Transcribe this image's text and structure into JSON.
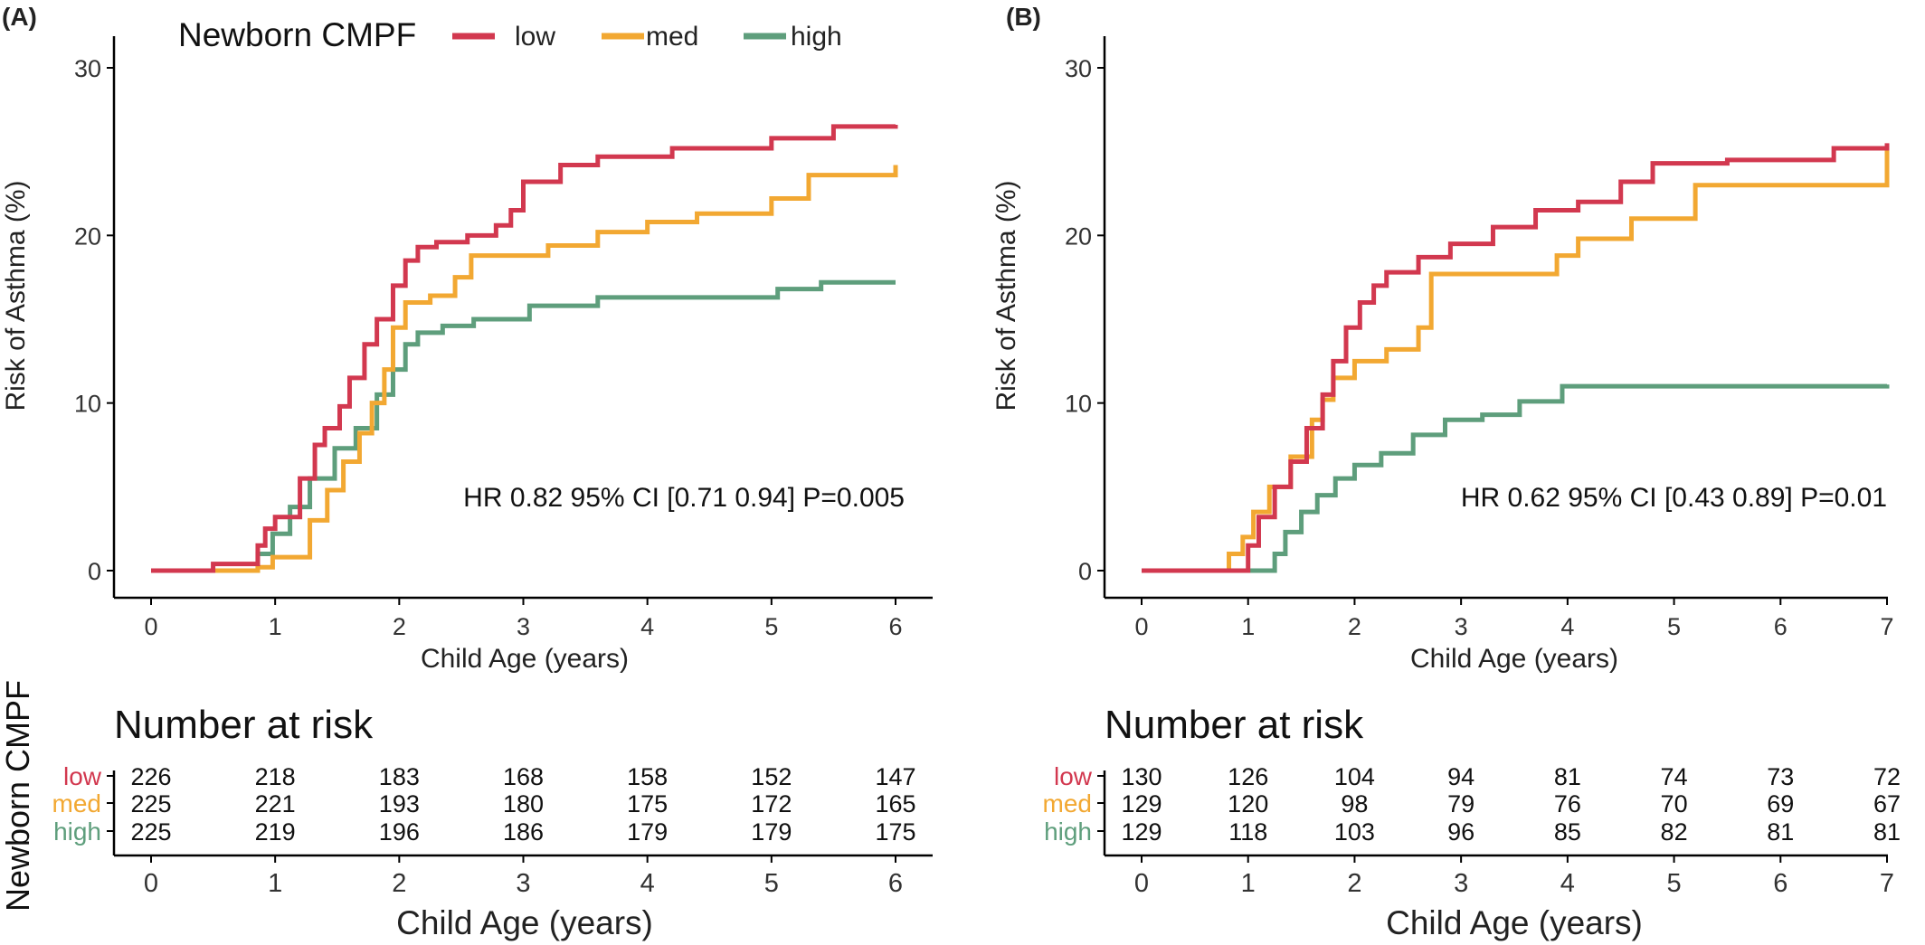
{
  "colors": {
    "low": "#d2384f",
    "med": "#f2a832",
    "high": "#5e9e7c",
    "axis": "#000000",
    "text": "#333333"
  },
  "legend": {
    "title": "Newborn CMPF",
    "items": [
      "low",
      "med",
      "high"
    ]
  },
  "risk_table": {
    "title": "Number at risk",
    "row_axis_label": "Newborn CMPF"
  },
  "chart_data": [
    {
      "type": "line",
      "panel": "(A)",
      "title": "",
      "xlabel": "Child Age (years)",
      "ylabel": "Risk of Asthma (%)",
      "xlim": [
        0,
        6
      ],
      "ylim": [
        0,
        30
      ],
      "xticks": [
        0,
        1,
        2,
        3,
        4,
        5,
        6
      ],
      "yticks": [
        0,
        10,
        20,
        30
      ],
      "annotation": "HR 0.82 95% CI [0.71 0.94] P=0.005",
      "grid": false,
      "legend_position": "top",
      "series": [
        {
          "name": "low",
          "color": "#d2384f",
          "x": [
            0,
            0.5,
            0.86,
            0.92,
            1.0,
            1.2,
            1.32,
            1.4,
            1.52,
            1.6,
            1.72,
            1.82,
            1.95,
            2.05,
            2.15,
            2.3,
            2.55,
            2.78,
            2.9,
            3.0,
            3.3,
            3.6,
            4.2,
            5.0,
            5.5,
            6.0
          ],
          "y": [
            0,
            0.4,
            1.5,
            2.5,
            3.2,
            5.5,
            7.5,
            8.5,
            9.8,
            11.5,
            13.5,
            15.0,
            17.0,
            18.5,
            19.3,
            19.6,
            20.0,
            20.6,
            21.5,
            23.2,
            24.2,
            24.7,
            25.2,
            25.8,
            26.5,
            26.6
          ]
        },
        {
          "name": "med",
          "color": "#f2a832",
          "x": [
            0,
            0.86,
            0.98,
            1.28,
            1.42,
            1.55,
            1.68,
            1.78,
            1.88,
            1.95,
            2.05,
            2.25,
            2.45,
            2.58,
            3.2,
            3.6,
            4.0,
            4.4,
            5.0,
            5.3,
            6.0
          ],
          "y": [
            0,
            0.2,
            0.8,
            3.0,
            4.8,
            6.5,
            8.2,
            10.0,
            12.0,
            14.5,
            16.0,
            16.4,
            17.5,
            18.8,
            19.4,
            20.2,
            20.8,
            21.3,
            22.2,
            23.6,
            24.2
          ]
        },
        {
          "name": "high",
          "color": "#5e9e7c",
          "x": [
            0,
            0.86,
            0.98,
            1.12,
            1.28,
            1.48,
            1.65,
            1.82,
            1.95,
            2.05,
            2.15,
            2.35,
            2.6,
            3.05,
            3.6,
            5.05,
            5.4,
            6.0
          ],
          "y": [
            0,
            1.0,
            2.2,
            3.8,
            5.5,
            7.3,
            8.5,
            10.5,
            12.0,
            13.5,
            14.2,
            14.6,
            15.0,
            15.8,
            16.3,
            16.8,
            17.2,
            17.2
          ]
        }
      ]
    },
    {
      "type": "line",
      "panel": "(B)",
      "title": "",
      "xlabel": "Child Age (years)",
      "ylabel": "Risk of Asthma (%)",
      "xlim": [
        0,
        7
      ],
      "ylim": [
        0,
        30
      ],
      "xticks": [
        0,
        1,
        2,
        3,
        4,
        5,
        6,
        7
      ],
      "yticks": [
        0,
        10,
        20,
        30
      ],
      "annotation": "HR 0.62 95% CI [0.43 0.89] P=0.01",
      "grid": false,
      "series": [
        {
          "name": "low",
          "color": "#d2384f",
          "x": [
            0,
            1.0,
            1.1,
            1.25,
            1.4,
            1.55,
            1.7,
            1.8,
            1.92,
            2.05,
            2.18,
            2.3,
            2.6,
            2.9,
            3.3,
            3.7,
            4.1,
            4.5,
            4.8,
            5.5,
            6.5,
            7.0
          ],
          "y": [
            0,
            1.5,
            3.2,
            5.0,
            6.5,
            8.5,
            10.5,
            12.5,
            14.5,
            16.0,
            17.0,
            17.8,
            18.7,
            19.5,
            20.5,
            21.5,
            22.0,
            23.2,
            24.3,
            24.5,
            25.2,
            25.5
          ]
        },
        {
          "name": "med",
          "color": "#f2a832",
          "x": [
            0,
            0.82,
            0.95,
            1.05,
            1.2,
            1.4,
            1.6,
            1.7,
            1.8,
            2.0,
            2.3,
            2.6,
            2.72,
            3.0,
            3.9,
            4.1,
            4.6,
            5.2,
            7.0
          ],
          "y": [
            0,
            1.0,
            2.0,
            3.5,
            5.0,
            6.8,
            9.0,
            10.2,
            11.5,
            12.5,
            13.2,
            14.5,
            17.7,
            17.7,
            18.8,
            19.8,
            21.0,
            23.0,
            25.3
          ]
        },
        {
          "name": "high",
          "color": "#5e9e7c",
          "x": [
            0,
            1.25,
            1.35,
            1.5,
            1.65,
            1.82,
            2.0,
            2.25,
            2.55,
            2.85,
            3.2,
            3.55,
            3.95,
            7.0
          ],
          "y": [
            0,
            1.0,
            2.3,
            3.5,
            4.5,
            5.5,
            6.3,
            7.0,
            8.1,
            9.0,
            9.3,
            10.1,
            11.0,
            11.1
          ]
        }
      ]
    }
  ],
  "risk_tables": [
    {
      "xlabel": "Child Age (years)",
      "xticks": [
        0,
        1,
        2,
        3,
        4,
        5,
        6
      ],
      "rows": [
        {
          "group": "low",
          "counts": [
            226,
            218,
            183,
            168,
            158,
            152,
            147
          ]
        },
        {
          "group": "med",
          "counts": [
            225,
            221,
            193,
            180,
            175,
            172,
            165
          ]
        },
        {
          "group": "high",
          "counts": [
            225,
            219,
            196,
            186,
            179,
            179,
            175
          ]
        }
      ]
    },
    {
      "xlabel": "Child Age (years)",
      "xticks": [
        0,
        1,
        2,
        3,
        4,
        5,
        6,
        7
      ],
      "rows": [
        {
          "group": "low",
          "counts": [
            130,
            126,
            104,
            94,
            81,
            74,
            73,
            72
          ]
        },
        {
          "group": "med",
          "counts": [
            129,
            120,
            98,
            79,
            76,
            70,
            69,
            67
          ]
        },
        {
          "group": "high",
          "counts": [
            129,
            118,
            103,
            96,
            85,
            82,
            81,
            81
          ]
        }
      ]
    }
  ]
}
